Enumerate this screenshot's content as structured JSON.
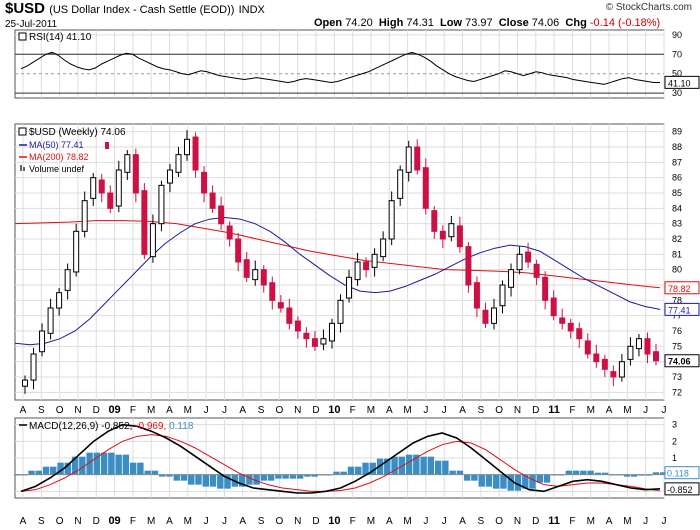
{
  "header": {
    "symbol": "$USD",
    "name": "(US Dollar Index - Cash Settle (EOD))",
    "exchange": "INDX",
    "date": "25-Jul-2011",
    "open_label": "Open",
    "open": "74.20",
    "high_label": "High",
    "high": "74.31",
    "low_label": "Low",
    "low": "73.97",
    "close_label": "Close",
    "close": "74.06",
    "chg_label": "Chg",
    "chg": "-0.14 (-0.18%)",
    "brand": "© StockCharts.com"
  },
  "chart_data": [
    {
      "type": "line",
      "panel": "rsi",
      "legend": "RSI(14) 41.10",
      "y_ticks": [
        90,
        70,
        50,
        30
      ],
      "ylim": [
        25,
        95
      ],
      "levels": [
        70,
        30
      ],
      "current_value": "41.10",
      "values": [
        55,
        58,
        62,
        66,
        70,
        72,
        69,
        64,
        60,
        57,
        55,
        54,
        56,
        60,
        63,
        66,
        69,
        71,
        70,
        66,
        63,
        60,
        57,
        55,
        54,
        52,
        50,
        49,
        51,
        53,
        52,
        50,
        48,
        47,
        46,
        45,
        44,
        45,
        46,
        45,
        44,
        43,
        42,
        41,
        42,
        44,
        45,
        44,
        43,
        42,
        41,
        42,
        44,
        46,
        48,
        50,
        52,
        55,
        58,
        61,
        64,
        67,
        70,
        72,
        70,
        67,
        63,
        58,
        54,
        50,
        47,
        45,
        43,
        42,
        44,
        46,
        48,
        50,
        53,
        52,
        50,
        48,
        50,
        52,
        51,
        49,
        48,
        47,
        46,
        44,
        43,
        42,
        41,
        40,
        39,
        41,
        43,
        45,
        46,
        44,
        43,
        42,
        41,
        41
      ],
      "color": "#000000",
      "overbought_fill": "#2e7d32"
    },
    {
      "type": "candlestick",
      "panel": "price",
      "legend": [
        "$USD (Weekly) 74.06",
        "MA(50) 77.41",
        "MA(200) 78.82",
        "Volume undef"
      ],
      "x_labels": [
        "A",
        "S",
        "O",
        "N",
        "D",
        "09",
        "F",
        "M",
        "A",
        "M",
        "J",
        "J",
        "A",
        "S",
        "O",
        "N",
        "D",
        "10",
        "F",
        "M",
        "A",
        "M",
        "J",
        "J",
        "A",
        "S",
        "O",
        "N",
        "D",
        "11",
        "F",
        "M",
        "A",
        "M",
        "J",
        "J"
      ],
      "y_ticks": [
        72,
        73,
        74,
        75,
        76,
        77,
        78,
        79,
        80,
        81,
        82,
        83,
        84,
        85,
        86,
        87,
        88,
        89
      ],
      "ylim": [
        71.5,
        89.5
      ],
      "current_close": "74.06",
      "ma50_value": "77.41",
      "ma200_value": "78.82",
      "close": [
        72.8,
        74.5,
        76.0,
        77.5,
        78.5,
        80.0,
        82.5,
        84.5,
        86.0,
        85.0,
        84.0,
        86.5,
        87.5,
        85.0,
        81.0,
        83.0,
        85.5,
        86.5,
        87.5,
        88.5,
        86.5,
        85.0,
        84.0,
        83.0,
        82.0,
        80.5,
        79.5,
        80.0,
        79.0,
        78.0,
        77.5,
        76.5,
        76.0,
        75.5,
        75.0,
        75.5,
        76.5,
        78.0,
        79.5,
        80.5,
        80.0,
        81.0,
        82.0,
        84.5,
        86.5,
        88.0,
        86.5,
        84.0,
        82.5,
        82.0,
        83.0,
        81.5,
        79.0,
        77.5,
        76.5,
        77.5,
        79.0,
        80.0,
        81.0,
        80.5,
        79.5,
        78.0,
        77.0,
        76.5,
        76.0,
        75.5,
        74.5,
        74.0,
        73.5,
        73.0,
        74.0,
        75.0,
        75.5,
        74.5,
        74.06
      ],
      "ma50": [
        75.2,
        75.1,
        75.2,
        75.5,
        76.0,
        76.8,
        77.8,
        78.8,
        79.8,
        80.8,
        81.7,
        82.4,
        83.0,
        83.3,
        83.4,
        83.3,
        83.0,
        82.5,
        81.8,
        81.0,
        80.3,
        79.6,
        79.0,
        78.6,
        78.5,
        78.6,
        78.9,
        79.3,
        79.7,
        80.2,
        80.7,
        81.1,
        81.4,
        81.6,
        81.5,
        81.2,
        80.6,
        80.0,
        79.4,
        78.9,
        78.4,
        77.9,
        77.6,
        77.41
      ],
      "ma200": [
        83.0,
        83.05,
        83.1,
        83.2,
        83.2,
        83.15,
        83.0,
        82.7,
        82.4,
        82.0,
        81.6,
        81.2,
        80.9,
        80.6,
        80.4,
        80.2,
        80.0,
        79.95,
        79.9,
        79.8,
        79.6,
        79.4,
        79.2,
        79.0,
        78.82
      ],
      "up_color": "#000000",
      "down_color": "#cc1144",
      "ma50_color": "#1a1aa0",
      "ma200_color": "#dd1111"
    },
    {
      "type": "line",
      "panel": "macd",
      "legend": "MACD(12,26,9) -0.852, -0.969, 0.118",
      "legend_parts": {
        "label": "MACD(12,26,9)",
        "macd": "-0.852",
        "signal": "-0.969",
        "hist": "0.118"
      },
      "y_ticks": [
        3,
        2,
        1,
        0,
        -1
      ],
      "ylim": [
        -1.4,
        3.4
      ],
      "macd_value": "-0.852",
      "hist_value": "0.118",
      "macd": [
        -1.0,
        -0.7,
        -0.2,
        0.4,
        1.2,
        2.0,
        2.6,
        3.0,
        2.9,
        2.6,
        2.2,
        1.7,
        1.1,
        0.5,
        -0.1,
        -0.5,
        -0.8,
        -0.9,
        -1.0,
        -1.1,
        -1.1,
        -1.0,
        -0.8,
        -0.4,
        0.1,
        0.7,
        1.3,
        1.9,
        2.3,
        2.5,
        2.2,
        1.6,
        0.9,
        0.2,
        -0.5,
        -0.9,
        -1.0,
        -0.7,
        -0.4,
        -0.3,
        -0.4,
        -0.6,
        -0.8,
        -0.9,
        -0.85
      ],
      "signal": [
        -1.0,
        -0.9,
        -0.6,
        -0.2,
        0.3,
        0.9,
        1.5,
        2.0,
        2.3,
        2.4,
        2.3,
        2.0,
        1.6,
        1.1,
        0.6,
        0.1,
        -0.3,
        -0.6,
        -0.8,
        -0.9,
        -1.0,
        -1.0,
        -0.95,
        -0.8,
        -0.5,
        -0.1,
        0.4,
        0.9,
        1.4,
        1.8,
        2.0,
        1.9,
        1.5,
        0.9,
        0.3,
        -0.2,
        -0.6,
        -0.7,
        -0.6,
        -0.5,
        -0.5,
        -0.6,
        -0.7,
        -0.85,
        -0.969
      ],
      "macd_color": "#000000",
      "signal_color": "#dd1111",
      "hist_color": "#3b8ec4"
    }
  ]
}
